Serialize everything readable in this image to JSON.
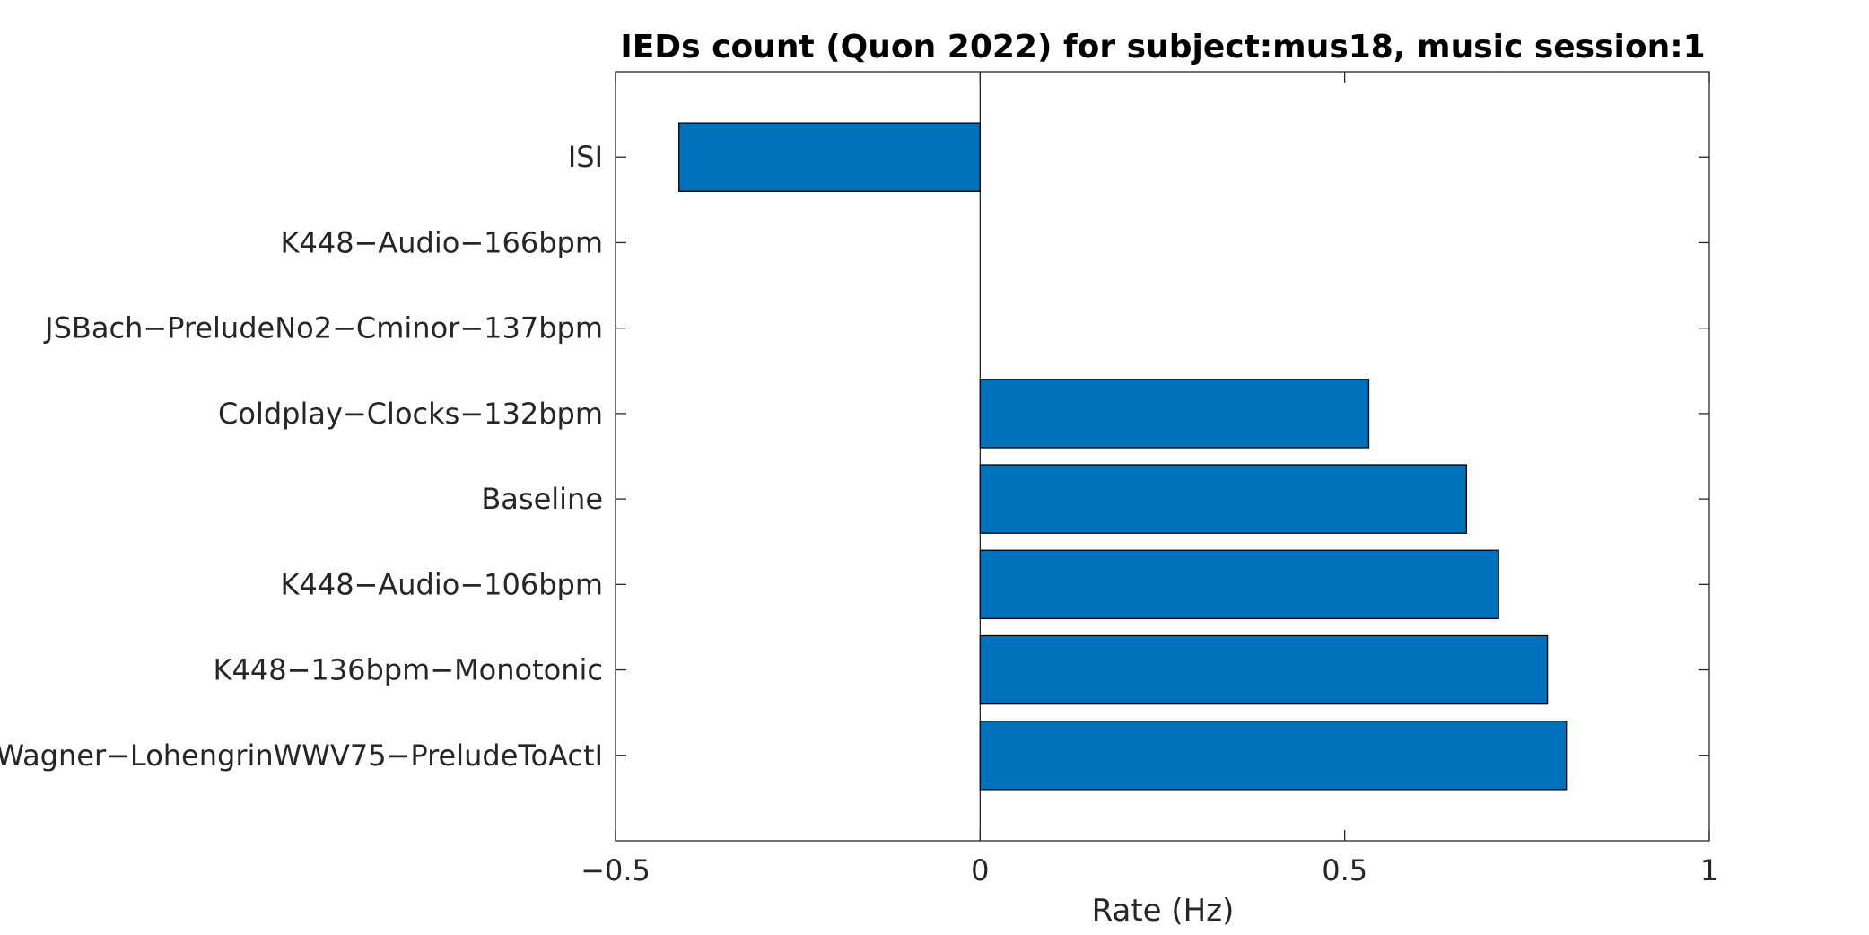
{
  "chart_data": {
    "type": "bar",
    "orientation": "horizontal",
    "title": "IEDs count (Quon 2022) for subject:mus18, music session:1",
    "xlabel": "Rate (Hz)",
    "ylabel": "",
    "xlim": [
      -0.5,
      1
    ],
    "xticks": [
      -0.5,
      0,
      0.5,
      1
    ],
    "xtick_labels": [
      "−0.5",
      "0",
      "0.5",
      "1"
    ],
    "categories": [
      "ISI",
      "K448−Audio−166bpm",
      "JSBach−PreludeNo2−Cminor−137bpm",
      "Coldplay−Clocks−132bpm",
      "Baseline",
      "K448−Audio−106bpm",
      "K448−136bpm−Monotonic",
      "Wagner−LohengrinWWV75−PreludeToActI"
    ],
    "values": [
      -0.413,
      0,
      0,
      0.533,
      0.667,
      0.711,
      0.778,
      0.804
    ],
    "bar_color": "#0072BD",
    "bar_edge_color": "#000000",
    "grid": false,
    "legend": "none"
  }
}
